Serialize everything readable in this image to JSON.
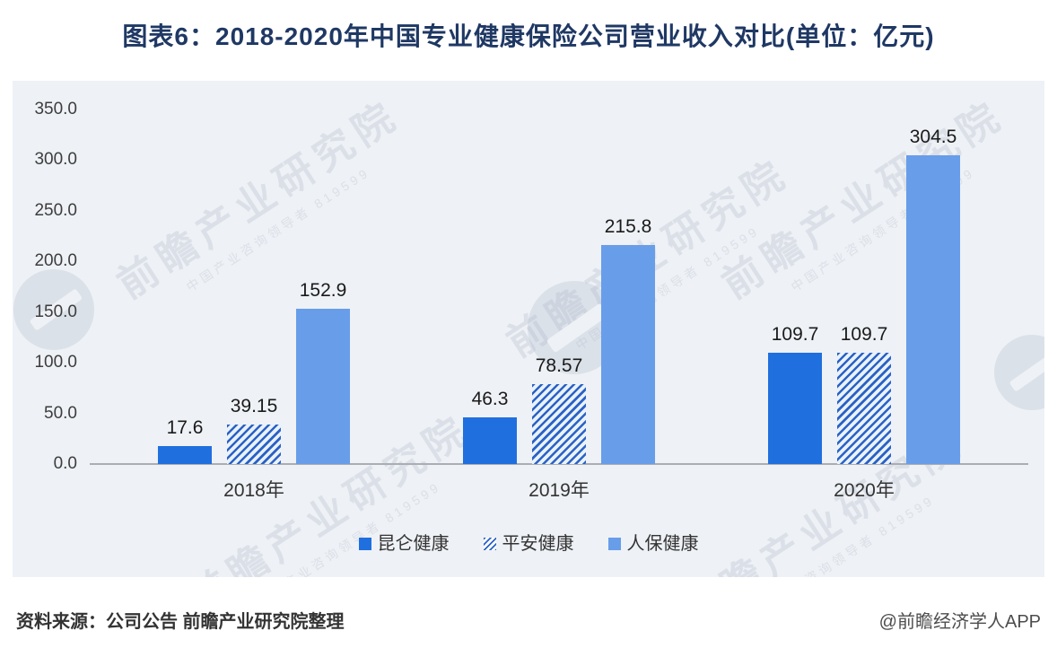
{
  "title": "图表6：2018-2020年中国专业健康保险公司营业收入对比(单位：亿元)",
  "chart_data": {
    "type": "bar",
    "title": "图表6：2018-2020年中国专业健康保险公司营业收入对比(单位：亿元)",
    "unit": "亿元",
    "categories": [
      "2018年",
      "2019年",
      "2020年"
    ],
    "series": [
      {
        "name": "昆仑健康",
        "style": "solid",
        "color": "#1f6fdf",
        "values": [
          17.6,
          46.3,
          109.7
        ],
        "labels": [
          "17.6",
          "46.3",
          "109.7"
        ]
      },
      {
        "name": "平安健康",
        "style": "hatched",
        "color": "#2b62c4",
        "values": [
          39.15,
          78.57,
          109.7
        ],
        "labels": [
          "39.15",
          "78.57",
          "109.7"
        ]
      },
      {
        "name": "人保健康",
        "style": "solid",
        "color": "#689de9",
        "values": [
          152.9,
          215.8,
          304.5
        ],
        "labels": [
          "152.9",
          "215.8",
          "304.5"
        ]
      }
    ],
    "ylim": [
      0,
      350
    ],
    "ytick_step": 50,
    "yticks": [
      "350.0",
      "300.0",
      "250.0",
      "200.0",
      "150.0",
      "100.0",
      "50.0",
      "0.0"
    ],
    "xlabel": "",
    "ylabel": "",
    "grid": false,
    "legend_position": "bottom"
  },
  "footer": {
    "source": "资料来源：公司公告 前瞻产业研究院整理",
    "credit": "@前瞻经济学人APP"
  },
  "watermark": {
    "brand": "前瞻产业研究院",
    "sub": "中国产业咨询领导者 819599"
  },
  "colors": {
    "title": "#1f3864",
    "panel_bg": "#eef1f5",
    "axis_line": "#aaadb3",
    "tick_text": "#3d3d3d",
    "value_text": "#1a1a1a",
    "bar_solid_dark": "#1f6fdf",
    "bar_hatch": "#2b62c4",
    "bar_solid_light": "#689de9"
  }
}
